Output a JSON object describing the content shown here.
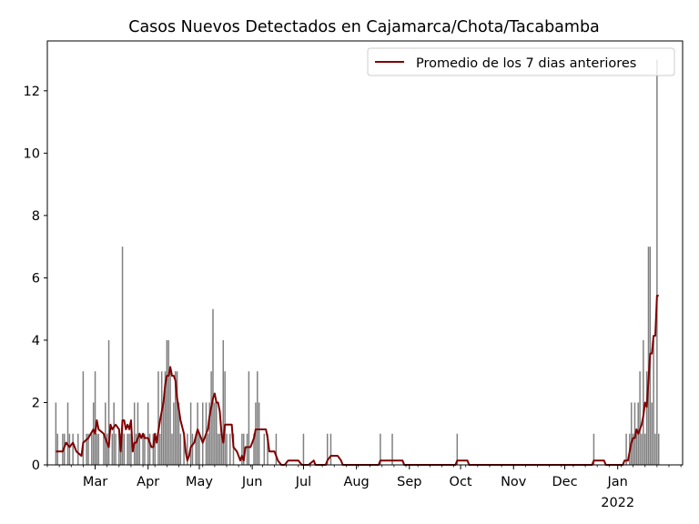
{
  "chart_data": {
    "type": "bar",
    "title": "Casos Nuevos Detectados en Cajamarca/Chota/Tacabamba",
    "xlabel": "",
    "ylabel": "",
    "ylim": [
      0,
      13.6
    ],
    "xlim": [
      "2021-02-01",
      "2022-02-08"
    ],
    "yticks": [
      0,
      2,
      4,
      6,
      8,
      10,
      12
    ],
    "xticks": [
      {
        "date": "2021-03-01",
        "label": "Mar"
      },
      {
        "date": "2021-04-01",
        "label": "Apr"
      },
      {
        "date": "2021-05-01",
        "label": "May"
      },
      {
        "date": "2021-06-01",
        "label": "Jun"
      },
      {
        "date": "2021-07-01",
        "label": "Jul"
      },
      {
        "date": "2021-08-01",
        "label": "Aug"
      },
      {
        "date": "2021-09-01",
        "label": "Sep"
      },
      {
        "date": "2021-10-01",
        "label": "Oct"
      },
      {
        "date": "2021-11-01",
        "label": "Nov"
      },
      {
        "date": "2021-12-01",
        "label": "Dec"
      },
      {
        "date": "2022-01-01",
        "label": "Jan",
        "sublabel": "2022"
      }
    ],
    "grid": false,
    "legend": {
      "position": "top-right",
      "entries": [
        "Promedio de los 7 dias anteriores"
      ]
    },
    "series": [
      {
        "type": "bar",
        "color": "#808080",
        "points": [
          [
            "2021-02-06",
            2
          ],
          [
            "2021-02-07",
            1
          ],
          [
            "2021-02-10",
            1
          ],
          [
            "2021-02-11",
            1
          ],
          [
            "2021-02-13",
            2
          ],
          [
            "2021-02-14",
            1
          ],
          [
            "2021-02-16",
            1
          ],
          [
            "2021-02-19",
            1
          ],
          [
            "2021-02-22",
            3
          ],
          [
            "2021-02-24",
            1
          ],
          [
            "2021-02-25",
            1
          ],
          [
            "2021-02-27",
            1
          ],
          [
            "2021-02-28",
            2
          ],
          [
            "2021-03-01",
            3
          ],
          [
            "2021-03-02",
            1
          ],
          [
            "2021-03-03",
            1
          ],
          [
            "2021-03-06",
            1
          ],
          [
            "2021-03-07",
            2
          ],
          [
            "2021-03-08",
            1
          ],
          [
            "2021-03-09",
            4
          ],
          [
            "2021-03-11",
            1
          ],
          [
            "2021-03-12",
            2
          ],
          [
            "2021-03-13",
            1
          ],
          [
            "2021-03-15",
            1
          ],
          [
            "2021-03-16",
            1
          ],
          [
            "2021-03-17",
            7
          ],
          [
            "2021-03-18",
            1
          ],
          [
            "2021-03-20",
            1
          ],
          [
            "2021-03-21",
            1
          ],
          [
            "2021-03-22",
            1
          ],
          [
            "2021-03-24",
            2
          ],
          [
            "2021-03-25",
            1
          ],
          [
            "2021-03-26",
            2
          ],
          [
            "2021-03-27",
            1
          ],
          [
            "2021-03-29",
            1
          ],
          [
            "2021-03-30",
            1
          ],
          [
            "2021-04-01",
            2
          ],
          [
            "2021-04-02",
            1
          ],
          [
            "2021-04-04",
            1
          ],
          [
            "2021-04-05",
            1
          ],
          [
            "2021-04-07",
            3
          ],
          [
            "2021-04-08",
            1
          ],
          [
            "2021-04-09",
            3
          ],
          [
            "2021-04-10",
            2
          ],
          [
            "2021-04-11",
            3
          ],
          [
            "2021-04-12",
            4
          ],
          [
            "2021-04-13",
            4
          ],
          [
            "2021-04-14",
            3
          ],
          [
            "2021-04-15",
            1
          ],
          [
            "2021-04-16",
            2
          ],
          [
            "2021-04-17",
            3
          ],
          [
            "2021-04-18",
            3
          ],
          [
            "2021-04-19",
            2
          ],
          [
            "2021-04-20",
            1
          ],
          [
            "2021-04-22",
            1
          ],
          [
            "2021-04-24",
            1
          ],
          [
            "2021-04-26",
            2
          ],
          [
            "2021-04-27",
            1
          ],
          [
            "2021-04-29",
            1
          ],
          [
            "2021-04-30",
            2
          ],
          [
            "2021-05-01",
            1
          ],
          [
            "2021-05-03",
            2
          ],
          [
            "2021-05-05",
            2
          ],
          [
            "2021-05-06",
            1
          ],
          [
            "2021-05-07",
            2
          ],
          [
            "2021-05-08",
            3
          ],
          [
            "2021-05-09",
            5
          ],
          [
            "2021-05-10",
            2
          ],
          [
            "2021-05-11",
            2
          ],
          [
            "2021-05-12",
            1
          ],
          [
            "2021-05-13",
            1
          ],
          [
            "2021-05-14",
            1
          ],
          [
            "2021-05-15",
            4
          ],
          [
            "2021-05-16",
            3
          ],
          [
            "2021-05-17",
            1
          ],
          [
            "2021-05-19",
            1
          ],
          [
            "2021-05-21",
            1
          ],
          [
            "2021-05-26",
            1
          ],
          [
            "2021-05-27",
            1
          ],
          [
            "2021-05-29",
            1
          ],
          [
            "2021-05-30",
            3
          ],
          [
            "2021-06-02",
            1
          ],
          [
            "2021-06-03",
            2
          ],
          [
            "2021-06-04",
            3
          ],
          [
            "2021-06-05",
            2
          ],
          [
            "2021-06-08",
            1
          ],
          [
            "2021-06-10",
            1
          ],
          [
            "2021-06-15",
            1
          ],
          [
            "2021-07-01",
            1
          ],
          [
            "2021-07-15",
            1
          ],
          [
            "2021-07-17",
            1
          ],
          [
            "2021-08-15",
            1
          ],
          [
            "2021-08-22",
            1
          ],
          [
            "2021-09-29",
            1
          ],
          [
            "2021-12-18",
            1
          ],
          [
            "2022-01-06",
            1
          ],
          [
            "2022-01-08",
            1
          ],
          [
            "2022-01-09",
            2
          ],
          [
            "2022-01-10",
            1
          ],
          [
            "2022-01-11",
            2
          ],
          [
            "2022-01-12",
            1
          ],
          [
            "2022-01-13",
            2
          ],
          [
            "2022-01-14",
            3
          ],
          [
            "2022-01-15",
            1
          ],
          [
            "2022-01-16",
            4
          ],
          [
            "2022-01-17",
            1
          ],
          [
            "2022-01-18",
            3
          ],
          [
            "2022-01-19",
            7
          ],
          [
            "2022-01-20",
            7
          ],
          [
            "2022-01-21",
            2
          ],
          [
            "2022-01-22",
            4
          ],
          [
            "2022-01-23",
            1
          ],
          [
            "2022-01-24",
            13
          ],
          [
            "2022-01-25",
            1
          ]
        ]
      },
      {
        "type": "line",
        "name": "Promedio de los 7 dias anteriores",
        "color": "#800000",
        "points": [
          [
            "2021-02-06",
            0.43
          ],
          [
            "2021-02-10",
            0.43
          ],
          [
            "2021-02-12",
            0.71
          ],
          [
            "2021-02-14",
            0.57
          ],
          [
            "2021-02-16",
            0.71
          ],
          [
            "2021-02-18",
            0.43
          ],
          [
            "2021-02-21",
            0.29
          ],
          [
            "2021-02-22",
            0.71
          ],
          [
            "2021-02-25",
            0.86
          ],
          [
            "2021-02-28",
            1.14
          ],
          [
            "2021-03-01",
            1.0
          ],
          [
            "2021-03-02",
            1.43
          ],
          [
            "2021-03-03",
            1.14
          ],
          [
            "2021-03-06",
            1.0
          ],
          [
            "2021-03-08",
            0.71
          ],
          [
            "2021-03-09",
            0.57
          ],
          [
            "2021-03-10",
            1.29
          ],
          [
            "2021-03-11",
            1.14
          ],
          [
            "2021-03-13",
            1.29
          ],
          [
            "2021-03-15",
            1.14
          ],
          [
            "2021-03-16",
            0.43
          ],
          [
            "2021-03-17",
            1.43
          ],
          [
            "2021-03-18",
            1.43
          ],
          [
            "2021-03-19",
            1.14
          ],
          [
            "2021-03-20",
            1.29
          ],
          [
            "2021-03-21",
            1.14
          ],
          [
            "2021-03-22",
            1.43
          ],
          [
            "2021-03-23",
            0.43
          ],
          [
            "2021-03-24",
            0.71
          ],
          [
            "2021-03-25",
            0.71
          ],
          [
            "2021-03-27",
            1.0
          ],
          [
            "2021-03-28",
            0.86
          ],
          [
            "2021-03-29",
            1.0
          ],
          [
            "2021-03-30",
            0.86
          ],
          [
            "2021-04-01",
            0.86
          ],
          [
            "2021-04-02",
            0.71
          ],
          [
            "2021-04-03",
            0.57
          ],
          [
            "2021-04-04",
            0.57
          ],
          [
            "2021-04-05",
            1.0
          ],
          [
            "2021-04-06",
            0.71
          ],
          [
            "2021-04-08",
            1.43
          ],
          [
            "2021-04-10",
            2.0
          ],
          [
            "2021-04-11",
            2.57
          ],
          [
            "2021-04-12",
            2.86
          ],
          [
            "2021-04-13",
            2.86
          ],
          [
            "2021-04-14",
            3.14
          ],
          [
            "2021-04-15",
            2.86
          ],
          [
            "2021-04-16",
            2.86
          ],
          [
            "2021-04-17",
            2.71
          ],
          [
            "2021-04-18",
            2.14
          ],
          [
            "2021-04-20",
            1.43
          ],
          [
            "2021-04-22",
            1.0
          ],
          [
            "2021-04-23",
            0.43
          ],
          [
            "2021-04-24",
            0.14
          ],
          [
            "2021-04-25",
            0.29
          ],
          [
            "2021-04-26",
            0.57
          ],
          [
            "2021-04-28",
            0.71
          ],
          [
            "2021-04-30",
            1.14
          ],
          [
            "2021-05-01",
            1.0
          ],
          [
            "2021-05-02",
            0.86
          ],
          [
            "2021-05-03",
            0.71
          ],
          [
            "2021-05-05",
            1.0
          ],
          [
            "2021-05-06",
            1.14
          ],
          [
            "2021-05-07",
            1.57
          ],
          [
            "2021-05-09",
            2.14
          ],
          [
            "2021-05-10",
            2.29
          ],
          [
            "2021-05-11",
            2.0
          ],
          [
            "2021-05-12",
            2.0
          ],
          [
            "2021-05-13",
            1.71
          ],
          [
            "2021-05-14",
            1.0
          ],
          [
            "2021-05-15",
            0.71
          ],
          [
            "2021-05-16",
            1.29
          ],
          [
            "2021-05-20",
            1.29
          ],
          [
            "2021-05-21",
            0.57
          ],
          [
            "2021-05-23",
            0.43
          ],
          [
            "2021-05-24",
            0.29
          ],
          [
            "2021-05-25",
            0.14
          ],
          [
            "2021-05-26",
            0.29
          ],
          [
            "2021-05-27",
            0.14
          ],
          [
            "2021-05-28",
            0.57
          ],
          [
            "2021-05-31",
            0.57
          ],
          [
            "2021-06-02",
            0.86
          ],
          [
            "2021-06-03",
            1.14
          ],
          [
            "2021-06-05",
            1.14
          ],
          [
            "2021-06-06",
            1.14
          ],
          [
            "2021-06-09",
            1.14
          ],
          [
            "2021-06-10",
            0.86
          ],
          [
            "2021-06-11",
            0.43
          ],
          [
            "2021-06-14",
            0.43
          ],
          [
            "2021-06-16",
            0.14
          ],
          [
            "2021-06-18",
            0.0
          ],
          [
            "2021-06-20",
            0.0
          ],
          [
            "2021-06-22",
            0.14
          ],
          [
            "2021-06-28",
            0.14
          ],
          [
            "2021-06-30",
            0.0
          ],
          [
            "2021-07-04",
            0.0
          ],
          [
            "2021-07-07",
            0.14
          ],
          [
            "2021-07-08",
            0.0
          ],
          [
            "2021-07-14",
            0.0
          ],
          [
            "2021-07-15",
            0.14
          ],
          [
            "2021-07-17",
            0.29
          ],
          [
            "2021-07-21",
            0.29
          ],
          [
            "2021-07-23",
            0.14
          ],
          [
            "2021-07-24",
            0.0
          ],
          [
            "2021-08-14",
            0.0
          ],
          [
            "2021-08-15",
            0.14
          ],
          [
            "2021-08-28",
            0.14
          ],
          [
            "2021-08-29",
            0.0
          ],
          [
            "2021-09-28",
            0.0
          ],
          [
            "2021-09-29",
            0.14
          ],
          [
            "2021-10-05",
            0.14
          ],
          [
            "2021-10-06",
            0.0
          ],
          [
            "2021-12-17",
            0.0
          ],
          [
            "2021-12-18",
            0.14
          ],
          [
            "2021-12-24",
            0.14
          ],
          [
            "2021-12-25",
            0.0
          ],
          [
            "2022-01-04",
            0.0
          ],
          [
            "2022-01-05",
            0.14
          ],
          [
            "2022-01-07",
            0.14
          ],
          [
            "2022-01-08",
            0.43
          ],
          [
            "2022-01-09",
            0.71
          ],
          [
            "2022-01-10",
            0.86
          ],
          [
            "2022-01-11",
            0.86
          ],
          [
            "2022-01-12",
            1.14
          ],
          [
            "2022-01-13",
            1.0
          ],
          [
            "2022-01-14",
            1.14
          ],
          [
            "2022-01-15",
            1.29
          ],
          [
            "2022-01-16",
            1.57
          ],
          [
            "2022-01-17",
            2.0
          ],
          [
            "2022-01-18",
            1.86
          ],
          [
            "2022-01-19",
            2.71
          ],
          [
            "2022-01-20",
            3.57
          ],
          [
            "2022-01-21",
            3.57
          ],
          [
            "2022-01-22",
            4.14
          ],
          [
            "2022-01-23",
            4.14
          ],
          [
            "2022-01-24",
            5.43
          ],
          [
            "2022-01-25",
            5.43
          ]
        ]
      }
    ]
  }
}
